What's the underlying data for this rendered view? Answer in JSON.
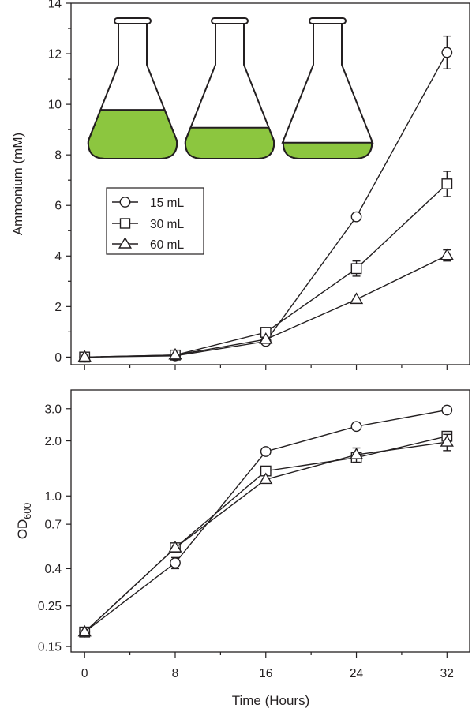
{
  "colors": {
    "ink": "#231f20",
    "medium": "#8cc63f",
    "marker_fill": "#ffffff"
  },
  "chart_data": [
    {
      "type": "line",
      "xlabel": "",
      "ylabel": "Ammonium (mM)",
      "x": [
        0,
        8,
        16,
        24,
        32
      ],
      "xlim": [
        -1.2,
        34
      ],
      "ylim": [
        -0.3,
        14
      ],
      "y_ticks": [
        0,
        2,
        4,
        6,
        8,
        10,
        12,
        14
      ],
      "y_tick_labels": [
        "0",
        "2",
        "4",
        "6",
        "8",
        "10",
        "12",
        "14"
      ],
      "y_minor_ticks": [
        1,
        3,
        5,
        7,
        9,
        11,
        13
      ],
      "x_ticks": [
        0,
        8,
        16,
        24,
        32
      ],
      "x_minor_ticks": [
        4,
        12,
        20,
        28
      ],
      "legend_position": "center-left",
      "grid": false,
      "illustration": "three erlenmeyer flasks filled to decreasing levels with green culture medium",
      "flask_fill_fractions": [
        0.52,
        0.33,
        0.17
      ],
      "series": [
        {
          "name": "15 mL",
          "marker": "circle",
          "values": [
            0.0,
            0.05,
            0.62,
            5.55,
            12.05
          ],
          "errors": [
            0.0,
            0.03,
            0.06,
            0.18,
            0.65
          ]
        },
        {
          "name": "30 mL",
          "marker": "square",
          "values": [
            0.0,
            0.08,
            0.98,
            3.5,
            6.85
          ],
          "errors": [
            0.0,
            0.03,
            0.06,
            0.3,
            0.5
          ]
        },
        {
          "name": "60 mL",
          "marker": "triangle",
          "values": [
            0.0,
            0.08,
            0.7,
            2.28,
            4.02
          ],
          "errors": [
            0.0,
            0.03,
            0.05,
            0.08,
            0.22
          ]
        }
      ]
    },
    {
      "type": "line",
      "xlabel": "Time (Hours)",
      "ylabel_main": "OD",
      "ylabel_sub": "600",
      "log_y": true,
      "x": [
        0,
        8,
        16,
        24,
        32
      ],
      "xlim": [
        -1.2,
        34
      ],
      "ylim": [
        0.14,
        3.8
      ],
      "y_ticks": [
        0.15,
        0.25,
        0.4,
        0.7,
        1.0,
        2.0,
        3.0
      ],
      "y_tick_labels": [
        "0.15",
        "0.25",
        "0.4",
        "0.7",
        "1.0",
        "2.0",
        "3.0"
      ],
      "x_ticks": [
        0,
        8,
        16,
        24,
        32
      ],
      "x_tick_labels": [
        "0",
        "8",
        "16",
        "24",
        "32"
      ],
      "x_minor_ticks": [
        4,
        12,
        20,
        28
      ],
      "grid": false,
      "series": [
        {
          "name": "15 mL",
          "marker": "circle",
          "values": [
            0.18,
            0.43,
            1.75,
            2.4,
            2.95
          ],
          "errors": [
            0.008,
            0.03,
            0.04,
            0.05,
            0.06
          ]
        },
        {
          "name": "30 mL",
          "marker": "square",
          "values": [
            0.18,
            0.52,
            1.37,
            1.62,
            2.12
          ],
          "errors": [
            0.008,
            0.02,
            0.06,
            0.08,
            0.12
          ]
        },
        {
          "name": "60 mL",
          "marker": "triangle",
          "values": [
            0.18,
            0.52,
            1.23,
            1.68,
            1.97
          ],
          "errors": [
            0.008,
            0.02,
            0.06,
            0.15,
            0.2
          ]
        }
      ]
    }
  ]
}
